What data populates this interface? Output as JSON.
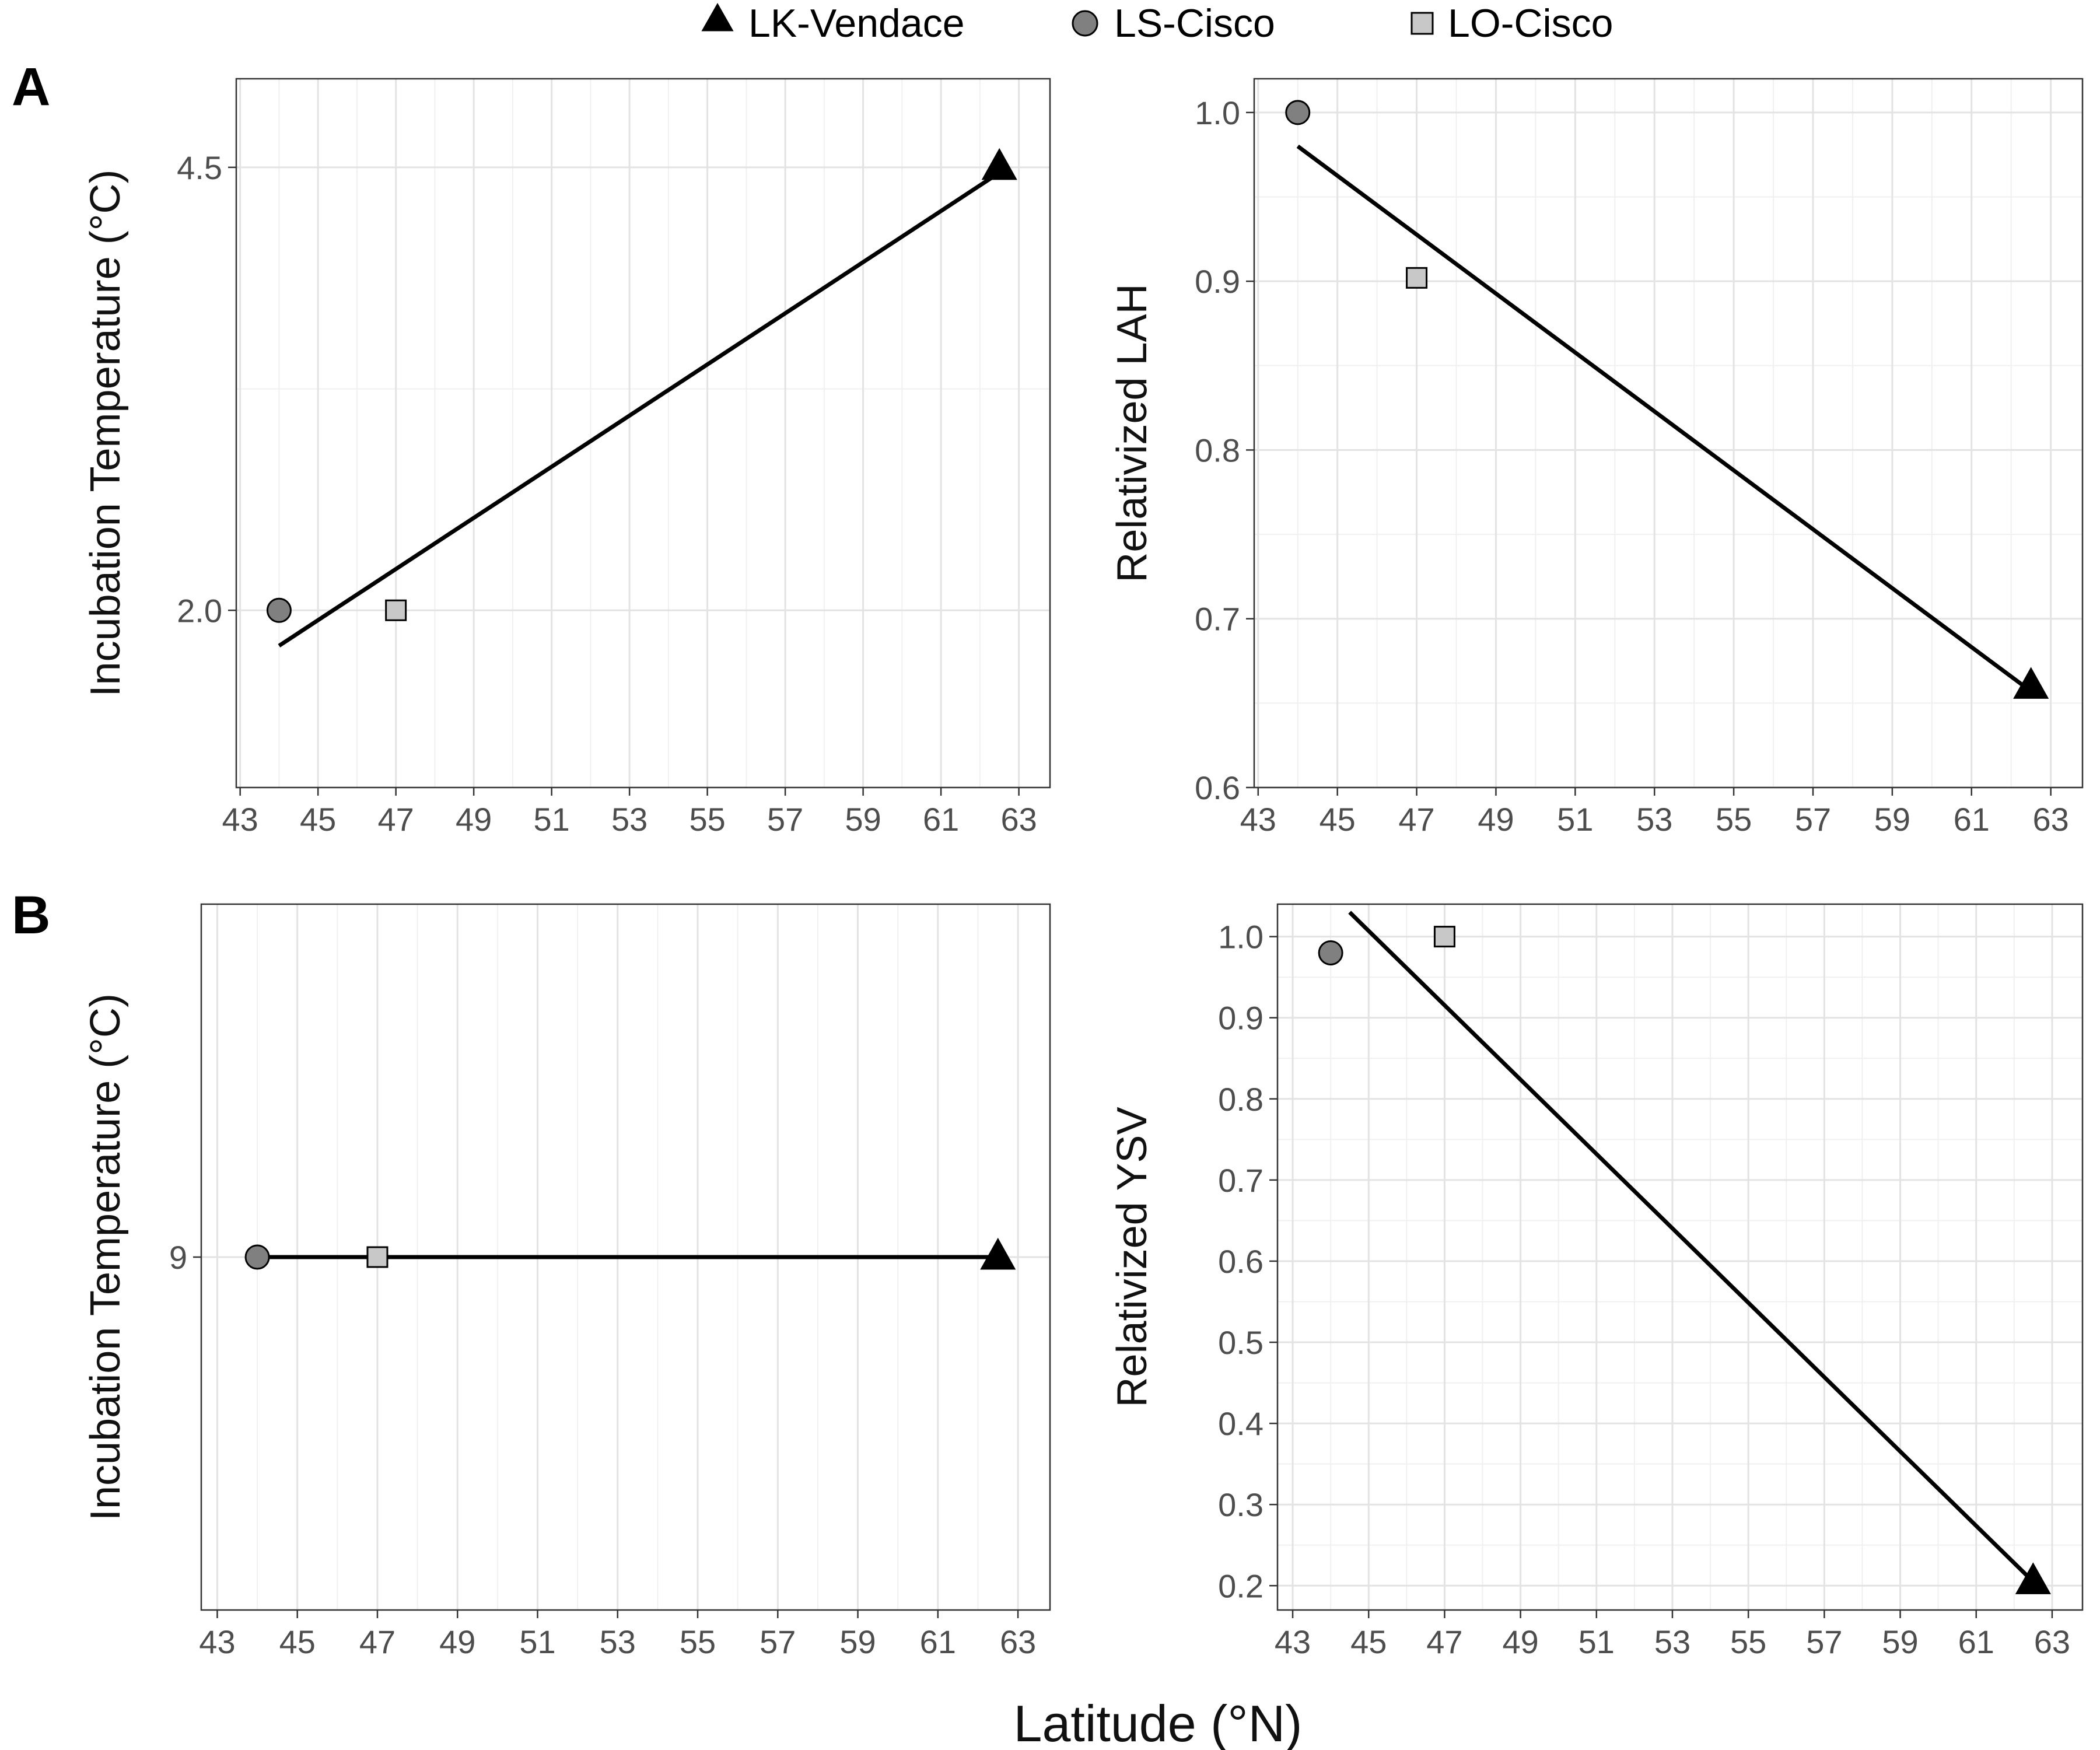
{
  "legend": {
    "position": "top",
    "items": [
      {
        "label": "LK-Vendace",
        "shape": "triangle",
        "fill": "#000000"
      },
      {
        "label": "LS-Cisco",
        "shape": "circle",
        "fill": "#808080"
      },
      {
        "label": "LO-Cisco",
        "shape": "square",
        "fill": "#c8c8c8"
      }
    ]
  },
  "figure": {
    "x_title": "Latitude (°N)",
    "panel_tags": [
      "A",
      "B"
    ]
  },
  "chart_data": [
    {
      "type": "scatter",
      "ylabel": "Incubation Temperature (°C)",
      "xlim": [
        42.9,
        63.8
      ],
      "ylim": [
        1.0,
        5.0
      ],
      "x_ticks": [
        43,
        45,
        47,
        49,
        51,
        53,
        55,
        57,
        59,
        61,
        63
      ],
      "y_ticks": [
        2.0,
        4.5
      ],
      "y_tick_labels": [
        "2.0",
        "4.5"
      ],
      "y_minor_ticks": [
        3.25
      ],
      "grid": true,
      "points": [
        {
          "series": "LS-Cisco",
          "x": 44.0,
          "y": 2.0
        },
        {
          "series": "LO-Cisco",
          "x": 47.0,
          "y": 2.0
        },
        {
          "series": "LK-Vendace",
          "x": 62.5,
          "y": 4.5
        }
      ],
      "fit_line": {
        "x": [
          44.0,
          62.5
        ],
        "y": [
          1.8,
          4.47
        ]
      }
    },
    {
      "type": "scatter",
      "ylabel": "Relativized LAH",
      "xlim": [
        42.9,
        63.8
      ],
      "ylim": [
        0.6,
        1.02
      ],
      "x_ticks": [
        43,
        45,
        47,
        49,
        51,
        53,
        55,
        57,
        59,
        61,
        63
      ],
      "y_ticks": [
        0.6,
        0.7,
        0.8,
        0.9,
        1.0
      ],
      "y_tick_labels": [
        "0.6",
        "0.7",
        "0.8",
        "0.9",
        "1.0"
      ],
      "y_minor_ticks": [
        0.65,
        0.75,
        0.85,
        0.95
      ],
      "grid": true,
      "points": [
        {
          "series": "LS-Cisco",
          "x": 44.0,
          "y": 1.0
        },
        {
          "series": "LO-Cisco",
          "x": 47.0,
          "y": 0.902
        },
        {
          "series": "LK-Vendace",
          "x": 62.5,
          "y": 0.66
        }
      ],
      "fit_line": {
        "x": [
          44.0,
          62.5
        ],
        "y": [
          0.98,
          0.657
        ]
      }
    },
    {
      "type": "scatter",
      "ylabel": "Incubation Temperature (°C)",
      "xlim": [
        42.6,
        63.8
      ],
      "ylim": [
        8.0,
        10.0
      ],
      "x_ticks": [
        43,
        45,
        47,
        49,
        51,
        53,
        55,
        57,
        59,
        61,
        63
      ],
      "y_ticks": [
        9
      ],
      "y_tick_labels": [
        "9"
      ],
      "y_minor_ticks": [],
      "grid": true,
      "points": [
        {
          "series": "LS-Cisco",
          "x": 44.0,
          "y": 9.0
        },
        {
          "series": "LO-Cisco",
          "x": 47.0,
          "y": 9.0
        },
        {
          "series": "LK-Vendace",
          "x": 62.5,
          "y": 9.0
        }
      ],
      "fit_line": {
        "x": [
          44.0,
          62.5
        ],
        "y": [
          9.0,
          9.0
        ]
      }
    },
    {
      "type": "scatter",
      "ylabel": "Relativized YSV",
      "xlim": [
        42.6,
        63.8
      ],
      "ylim": [
        0.17,
        1.04
      ],
      "x_ticks": [
        43,
        45,
        47,
        49,
        51,
        53,
        55,
        57,
        59,
        61,
        63
      ],
      "y_ticks": [
        0.2,
        0.3,
        0.4,
        0.5,
        0.6,
        0.7,
        0.8,
        0.9,
        1.0
      ],
      "y_tick_labels": [
        "0.2",
        "0.3",
        "0.4",
        "0.5",
        "0.6",
        "0.7",
        "0.8",
        "0.9",
        "1.0"
      ],
      "y_minor_ticks": [
        0.25,
        0.35,
        0.45,
        0.55,
        0.65,
        0.75,
        0.85,
        0.95
      ],
      "grid": true,
      "points": [
        {
          "series": "LS-Cisco",
          "x": 44.0,
          "y": 0.98
        },
        {
          "series": "LO-Cisco",
          "x": 47.0,
          "y": 1.0
        },
        {
          "series": "LK-Vendace",
          "x": 62.5,
          "y": 0.205
        }
      ],
      "fit_line": {
        "x": [
          44.5,
          62.5
        ],
        "y": [
          1.03,
          0.205
        ]
      }
    }
  ]
}
